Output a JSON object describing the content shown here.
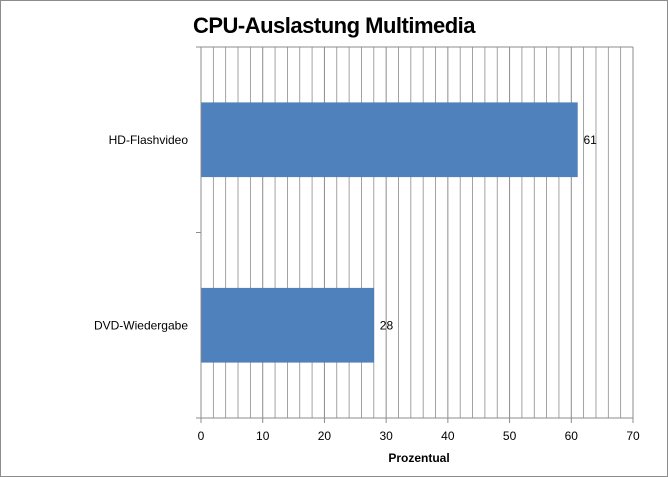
{
  "chart_data": {
    "type": "bar",
    "orientation": "horizontal",
    "title": "CPU-Auslastung Multimedia",
    "xlabel": "Prozentual",
    "ylabel": "",
    "categories": [
      "HD-Flashvideo",
      "DVD-Wiedergabe"
    ],
    "values": [
      61,
      28
    ],
    "data_labels": [
      "61",
      "28"
    ],
    "xlim": [
      0,
      70
    ],
    "x_ticks": [
      "0",
      "10",
      "20",
      "30",
      "40",
      "50",
      "60",
      "70"
    ],
    "grid": "vertical major and minor gridlines",
    "legend": "none",
    "bar_color": "#4f81bd",
    "grid_color": "#8c8c8c"
  }
}
